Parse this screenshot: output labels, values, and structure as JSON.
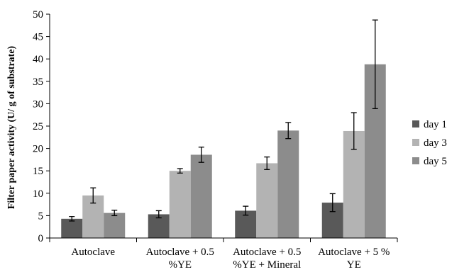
{
  "chart_data": {
    "type": "bar",
    "title": "",
    "xlabel": "",
    "ylabel": "Filter paper activity (U/ g of substrate)",
    "ylim": [
      0,
      50
    ],
    "yticks": [
      0,
      5,
      10,
      15,
      20,
      25,
      30,
      35,
      40,
      45,
      50
    ],
    "grid": false,
    "legend_position": "right",
    "categories": [
      [
        "Autoclave"
      ],
      [
        "Autoclave + 0.5",
        "%YE"
      ],
      [
        "Autoclave + 0.5",
        "%YE + Mineral"
      ],
      [
        "Autoclave + 5 %",
        "YE"
      ]
    ],
    "series": [
      {
        "name": "day 1",
        "color": "#595959",
        "values": [
          4.3,
          5.3,
          6.1,
          7.9
        ],
        "errors": [
          0.5,
          0.8,
          1.0,
          2.0
        ]
      },
      {
        "name": "day 3",
        "color": "#b3b3b3",
        "values": [
          9.5,
          15.0,
          16.7,
          23.9
        ],
        "errors": [
          1.7,
          0.5,
          1.4,
          4.1
        ]
      },
      {
        "name": "day 5",
        "color": "#8c8c8c",
        "values": [
          5.6,
          18.6,
          24.0,
          38.8
        ],
        "errors": [
          0.6,
          1.7,
          1.8,
          9.9
        ]
      }
    ]
  }
}
